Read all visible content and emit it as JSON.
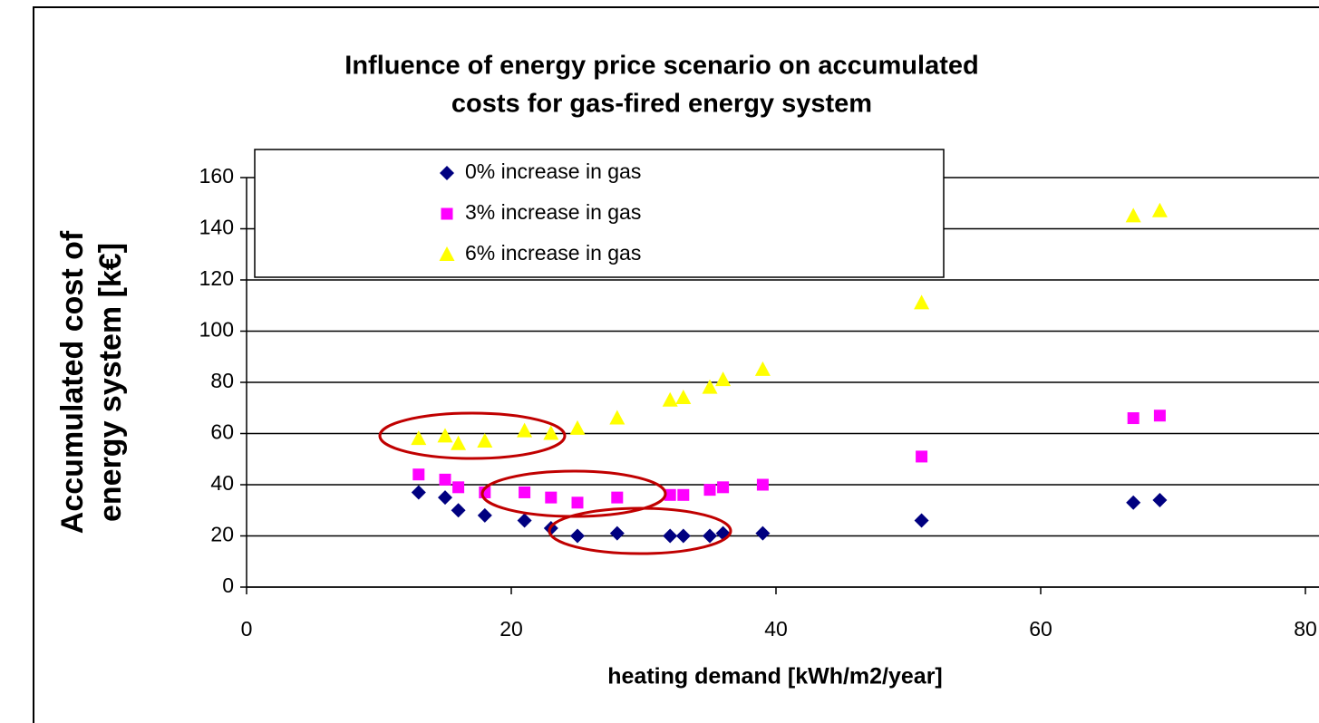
{
  "chart_data": {
    "type": "scatter",
    "title": [
      "Influence of energy price scenario on accumulated",
      "costs for gas-fired energy system"
    ],
    "xlabel": "heating demand [kWh/m2/year]",
    "ylabel": [
      "Accumulated cost of",
      "energy system [k€]"
    ],
    "xlim": [
      0,
      80
    ],
    "xticks": [
      0,
      20,
      40,
      60,
      80
    ],
    "ylim": [
      0,
      160
    ],
    "yticks": [
      0,
      20,
      40,
      60,
      80,
      100,
      120,
      140,
      160
    ],
    "grid": true,
    "legend": "upper left",
    "series": [
      {
        "name": "0% increase in gas",
        "color": "#000080",
        "marker": "diamond",
        "x": [
          13,
          15,
          16,
          18,
          21,
          23,
          25,
          28,
          32,
          33,
          35,
          36,
          39,
          51,
          67,
          69
        ],
        "values": [
          37,
          35,
          30,
          28,
          26,
          23,
          20,
          21,
          20,
          20,
          20,
          21,
          21,
          26,
          33,
          34
        ]
      },
      {
        "name": "3% increase in gas",
        "color": "#ff00ff",
        "marker": "square",
        "x": [
          13,
          15,
          16,
          18,
          21,
          23,
          25,
          28,
          32,
          33,
          35,
          36,
          39,
          51,
          67,
          69
        ],
        "values": [
          44,
          42,
          39,
          37,
          37,
          35,
          33,
          35,
          36,
          36,
          38,
          39,
          40,
          51,
          66,
          67
        ]
      },
      {
        "name": "6% increase in gas",
        "color": "#ffff00",
        "marker": "triangle",
        "x": [
          13,
          15,
          16,
          18,
          21,
          23,
          25,
          28,
          32,
          33,
          35,
          36,
          39,
          51,
          67,
          69
        ],
        "values": [
          58,
          59,
          56,
          57,
          61,
          60,
          62,
          66,
          73,
          74,
          78,
          81,
          85,
          111,
          145,
          147
        ]
      }
    ]
  }
}
